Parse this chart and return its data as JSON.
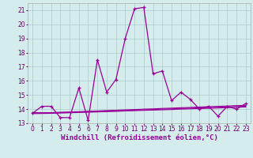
{
  "xlabel": "Windchill (Refroidissement éolien,°C)",
  "x_values": [
    0,
    1,
    2,
    3,
    4,
    5,
    6,
    7,
    8,
    9,
    10,
    11,
    12,
    13,
    14,
    15,
    16,
    17,
    18,
    19,
    20,
    21,
    22,
    23
  ],
  "main_line": [
    13.7,
    14.2,
    14.2,
    13.4,
    13.4,
    15.5,
    13.2,
    17.5,
    15.2,
    16.1,
    19.0,
    21.1,
    21.2,
    16.5,
    16.7,
    14.6,
    15.2,
    14.7,
    14.0,
    14.2,
    13.5,
    14.2,
    14.0,
    14.4
  ],
  "line2": [
    13.75,
    13.75,
    13.75,
    13.78,
    13.8,
    13.82,
    13.85,
    13.87,
    13.9,
    13.92,
    13.95,
    13.97,
    14.0,
    14.02,
    14.05,
    14.07,
    14.1,
    14.12,
    14.15,
    14.17,
    14.2,
    14.22,
    14.25,
    14.27
  ],
  "line3": [
    13.72,
    13.72,
    13.73,
    13.75,
    13.77,
    13.79,
    13.81,
    13.83,
    13.86,
    13.88,
    13.9,
    13.93,
    13.95,
    13.97,
    14.0,
    14.02,
    14.04,
    14.07,
    14.09,
    14.11,
    14.13,
    14.16,
    14.18,
    14.2
  ],
  "line4": [
    13.68,
    13.69,
    13.7,
    13.72,
    13.74,
    13.76,
    13.78,
    13.8,
    13.82,
    13.84,
    13.87,
    13.89,
    13.91,
    13.93,
    13.95,
    13.97,
    14.0,
    14.02,
    14.04,
    14.06,
    14.08,
    14.1,
    14.13,
    14.15
  ],
  "line_color": "#990099",
  "bg_color": "#d5ecec",
  "grid_color": "#aacccc",
  "ylim": [
    13.0,
    21.5
  ],
  "yticks": [
    13,
    14,
    15,
    16,
    17,
    18,
    19,
    20,
    21
  ],
  "xlim": [
    -0.5,
    23.5
  ],
  "xticks": [
    0,
    1,
    2,
    3,
    4,
    5,
    6,
    7,
    8,
    9,
    10,
    11,
    12,
    13,
    14,
    15,
    16,
    17,
    18,
    19,
    20,
    21,
    22,
    23
  ],
  "tick_fontsize": 5.5,
  "xlabel_fontsize": 6.5
}
